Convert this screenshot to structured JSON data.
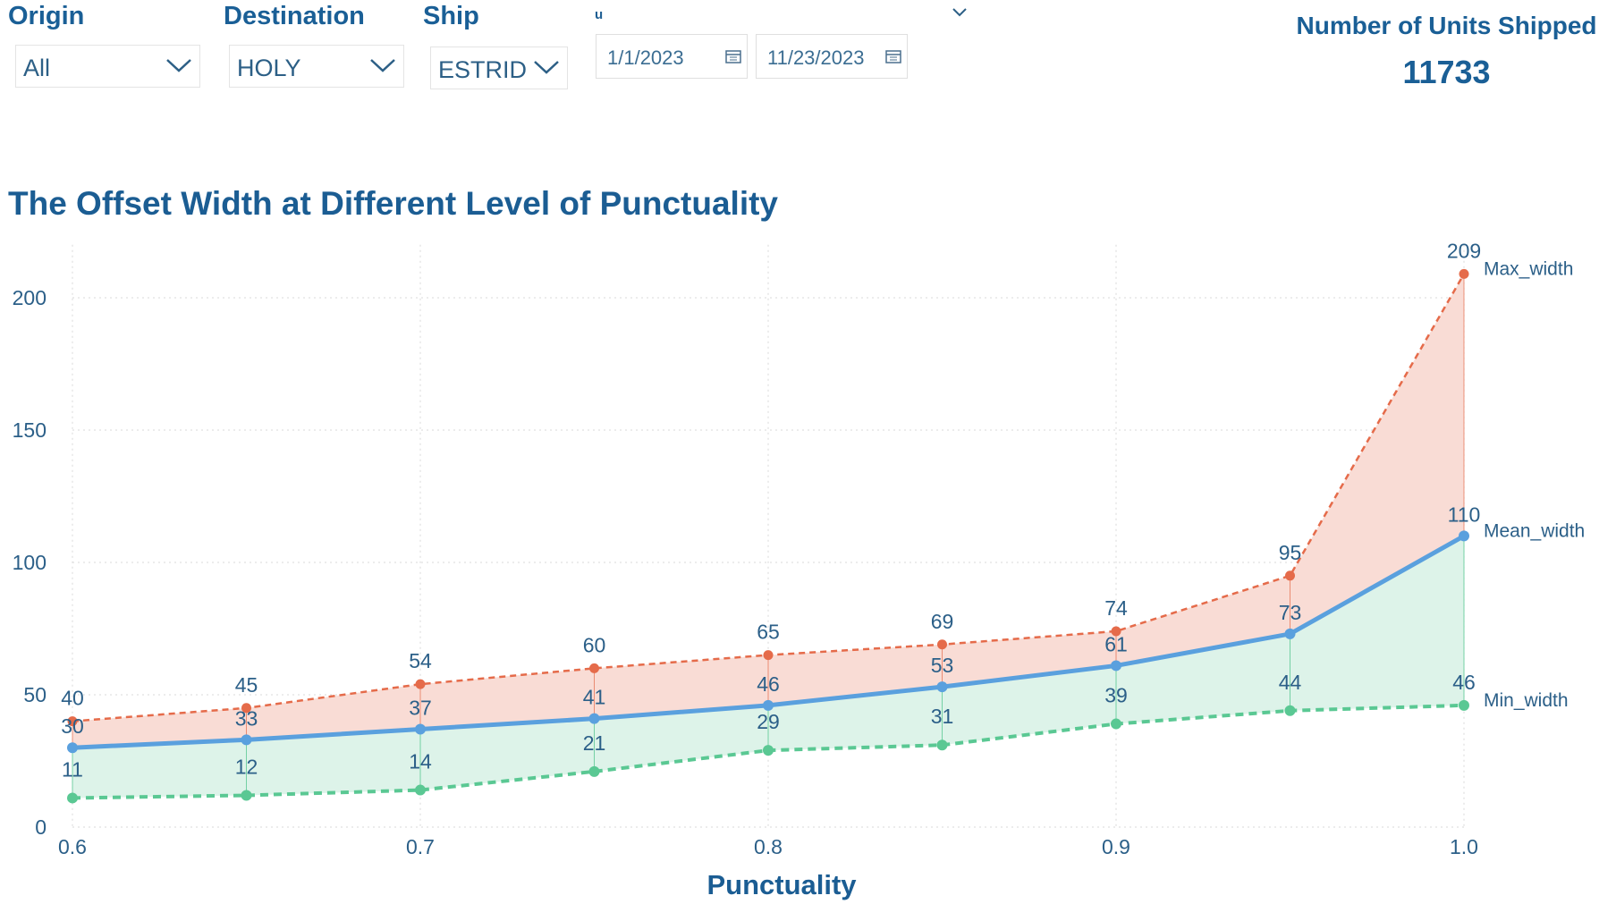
{
  "filters": {
    "origin": {
      "label": "Origin",
      "value": "All"
    },
    "destination": {
      "label": "Destination",
      "value": "HOLY"
    },
    "ship": {
      "label": "Ship",
      "value": "ESTRID"
    },
    "date_range": {
      "label": "u",
      "start": "1/1/2023",
      "end": "11/23/2023"
    }
  },
  "card": {
    "title": "Number of Units Shipped",
    "value": "11733"
  },
  "colors": {
    "max": "#e56b4a",
    "mean": "#5aa0de",
    "min": "#5ac893",
    "band_upper": "#f9dcd5",
    "band_lower": "#ddf3e9",
    "title": "#1b5d93"
  },
  "chart_data": {
    "type": "line",
    "title": "The Offset Width at Different Level of Punctuality",
    "xlabel": "Punctuality",
    "ylabel": "",
    "x": [
      0.6,
      0.65,
      0.7,
      0.75,
      0.8,
      0.85,
      0.9,
      0.95,
      1.0
    ],
    "xticks": [
      "0.6",
      "0.7",
      "0.8",
      "0.9",
      "1.0"
    ],
    "xtick_values": [
      0.6,
      0.7,
      0.8,
      0.9,
      1.0
    ],
    "yticks": [
      0,
      50,
      100,
      150,
      200
    ],
    "xlim": [
      0.6,
      1.0
    ],
    "ylim": [
      0,
      220
    ],
    "grid": true,
    "series": [
      {
        "name": "Max_width",
        "values": [
          40,
          45,
          54,
          60,
          65,
          69,
          74,
          95,
          209
        ],
        "style": "dashed"
      },
      {
        "name": "Mean_width",
        "values": [
          30,
          33,
          37,
          41,
          46,
          53,
          61,
          73,
          110
        ],
        "style": "solid"
      },
      {
        "name": "Min_width",
        "values": [
          11,
          12,
          14,
          21,
          29,
          31,
          39,
          44,
          46
        ],
        "style": "dashed"
      }
    ]
  }
}
